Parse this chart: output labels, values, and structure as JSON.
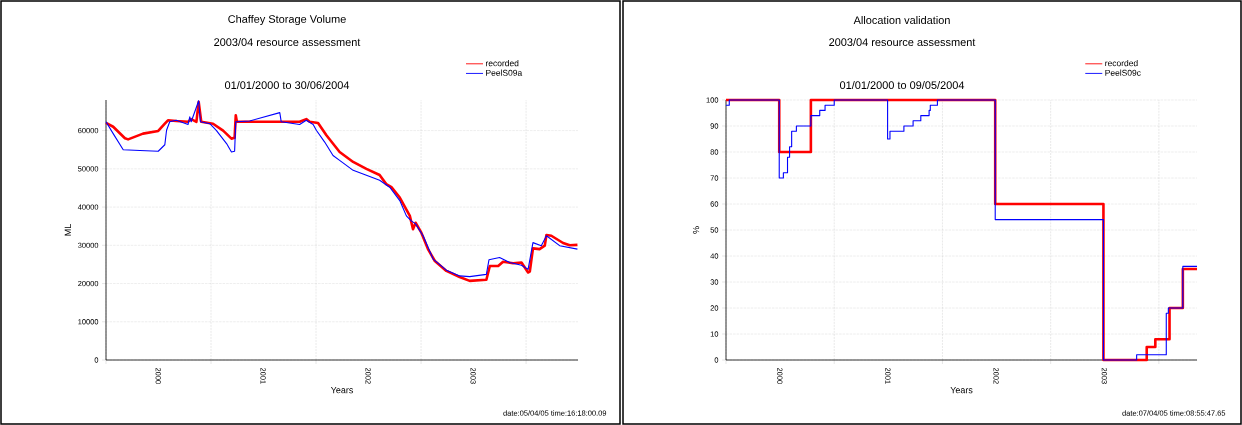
{
  "chart_data": [
    {
      "type": "line",
      "title": "Chaffey Storage Volume",
      "subtitle": "2003/04 resource assessment",
      "xlabel": "Years",
      "ylabel": "ML",
      "annotations": [
        "01/01/2000 to 30/06/2004",
        "date:05/04/05 time:16:18:00.09"
      ],
      "xlim": [
        "2000-01-01",
        "2004-06-30"
      ],
      "ylim": [
        0,
        68000
      ],
      "xticks": [
        {
          "value": "2000-01-01",
          "label": null
        },
        {
          "value": "2000-07-01",
          "label": "2000"
        },
        {
          "value": "2001-01-01",
          "label": null
        },
        {
          "value": "2001-07-01",
          "label": "2001"
        },
        {
          "value": "2002-01-01",
          "label": null
        },
        {
          "value": "2002-07-01",
          "label": "2002"
        },
        {
          "value": "2003-01-01",
          "label": null
        },
        {
          "value": "2003-07-01",
          "label": "2003"
        },
        {
          "value": "2004-01-01",
          "label": null
        }
      ],
      "yticks": [
        0,
        10000,
        20000,
        30000,
        40000,
        50000,
        60000
      ],
      "grid": true,
      "legend": "top right",
      "series": [
        {
          "name": "recorded",
          "color": "#ff0000",
          "x": [
            "2000-01-01",
            "2000-01-26",
            "2000-03-07",
            "2000-03-18",
            "2000-05-09",
            "2000-07-01",
            "2000-07-24",
            "2000-08-04",
            "2000-09-02",
            "2000-10-13",
            "2000-10-24",
            "2000-11-11",
            "2000-11-19",
            "2000-11-28",
            "2001-01-08",
            "2001-02-12",
            "2001-03-13",
            "2001-03-24",
            "2001-03-28",
            "2001-04-01",
            "2001-05-15",
            "2001-08-28",
            "2001-11-05",
            "2001-11-28",
            "2001-12-10",
            "2002-01-08",
            "2002-02-06",
            "2002-03-24",
            "2002-05-10",
            "2002-06-25",
            "2002-08-10",
            "2002-09-02",
            "2002-09-20",
            "2002-10-19",
            "2002-11-23",
            "2002-12-04",
            "2002-12-13",
            "2003-01-02",
            "2003-01-25",
            "2003-02-18",
            "2003-03-30",
            "2003-05-15",
            "2003-06-19",
            "2003-08-16",
            "2003-08-28",
            "2003-09-26",
            "2003-10-13",
            "2003-11-17",
            "2003-12-16",
            "2004-01-08",
            "2004-01-14",
            "2004-01-25",
            "2004-02-17",
            "2004-03-06",
            "2004-03-12",
            "2004-03-29",
            "2004-05-09",
            "2004-06-01",
            "2004-06-28"
          ],
          "values": [
            62000,
            61000,
            58000,
            57700,
            59200,
            59900,
            61800,
            62700,
            62500,
            62300,
            63000,
            62300,
            67500,
            62300,
            61800,
            60000,
            57900,
            58100,
            64000,
            62300,
            62300,
            62300,
            62300,
            63000,
            62300,
            62000,
            58800,
            54400,
            51800,
            50000,
            48400,
            46000,
            45200,
            42500,
            37700,
            34200,
            35900,
            33300,
            29000,
            25900,
            23300,
            21700,
            20700,
            21000,
            24600,
            24600,
            25700,
            25300,
            25500,
            22900,
            23100,
            29200,
            29000,
            29900,
            32700,
            32500,
            30600,
            30000,
            30100
          ]
        },
        {
          "name": "PeelS09a",
          "color": "#0000ff",
          "x": [
            "2000-01-01",
            "2000-01-26",
            "2000-03-01",
            "2000-04-28",
            "2000-07-01",
            "2000-07-24",
            "2000-07-30",
            "2000-08-10",
            "2000-09-02",
            "2000-10-13",
            "2000-10-19",
            "2000-10-24",
            "2000-11-19",
            "2000-11-25",
            "2000-12-28",
            "2001-01-20",
            "2001-02-24",
            "2001-03-13",
            "2001-03-24",
            "2001-03-28",
            "2001-05-15",
            "2001-08-28",
            "2001-09-02",
            "2001-11-05",
            "2001-11-28",
            "2001-12-22",
            "2002-01-02",
            "2002-01-31",
            "2002-03-01",
            "2002-03-24",
            "2002-05-10",
            "2002-06-25",
            "2002-08-10",
            "2002-09-14",
            "2002-10-19",
            "2002-11-11",
            "2002-11-28",
            "2002-12-13",
            "2003-01-08",
            "2003-02-12",
            "2003-03-30",
            "2003-05-15",
            "2003-06-19",
            "2003-08-16",
            "2003-08-25",
            "2003-10-01",
            "2003-11-05",
            "2003-12-16",
            "2004-01-08",
            "2004-01-25",
            "2004-02-23",
            "2004-03-12",
            "2004-04-27",
            "2004-06-28"
          ],
          "values": [
            62300,
            59200,
            55000,
            54800,
            54600,
            56300,
            60100,
            62300,
            62700,
            61600,
            63600,
            62300,
            67800,
            62300,
            61800,
            60000,
            56600,
            54400,
            54600,
            62300,
            62500,
            64700,
            62300,
            61600,
            62700,
            61600,
            60100,
            57000,
            53500,
            52200,
            49600,
            48300,
            47000,
            45200,
            41700,
            37700,
            36400,
            35600,
            32500,
            26400,
            23500,
            22000,
            21800,
            22400,
            26200,
            26800,
            25500,
            24800,
            23700,
            30700,
            29900,
            32500,
            29900,
            29000
          ]
        }
      ]
    },
    {
      "type": "step",
      "title": "Allocation validation",
      "subtitle": "2003/04 resource assessment",
      "xlabel": "Years",
      "ylabel": "%",
      "annotations": [
        "01/01/2000 to 09/05/2004",
        "date:07/04/05 time:08:55:47.65"
      ],
      "xlim": [
        "2000-01-01",
        "2004-05-09"
      ],
      "ylim": [
        0,
        100
      ],
      "xticks": [
        {
          "value": "2000-01-01",
          "label": null
        },
        {
          "value": "2000-07-01",
          "label": "2000"
        },
        {
          "value": "2001-01-01",
          "label": null
        },
        {
          "value": "2001-07-01",
          "label": "2001"
        },
        {
          "value": "2002-01-01",
          "label": null
        },
        {
          "value": "2002-07-01",
          "label": "2002"
        },
        {
          "value": "2003-01-01",
          "label": null
        },
        {
          "value": "2003-07-01",
          "label": "2003"
        },
        {
          "value": "2004-01-01",
          "label": null
        }
      ],
      "yticks": [
        0,
        10,
        20,
        30,
        40,
        50,
        60,
        70,
        80,
        90,
        100
      ],
      "grid": true,
      "legend": "top right",
      "series": [
        {
          "name": "recorded",
          "color": "#ff0000",
          "x": [
            "2000-01-01",
            "2000-06-29",
            "2000-10-14",
            "2002-06-28",
            "2003-06-28",
            "2003-11-21",
            "2003-12-20",
            "2004-02-06",
            "2004-03-22",
            "2004-05-09"
          ],
          "values": [
            100,
            80,
            100,
            60,
            0,
            5,
            8,
            20,
            35,
            35
          ]
        },
        {
          "name": "PeelS09c",
          "color": "#0000ff",
          "x": [
            "2000-01-01",
            "2000-01-12",
            "2000-06-29",
            "2000-07-13",
            "2000-07-27",
            "2000-08-03",
            "2000-08-10",
            "2000-08-26",
            "2000-10-14",
            "2000-11-13",
            "2000-12-01",
            "2001-01-01",
            "2001-06-30",
            "2001-07-08",
            "2001-08-24",
            "2001-09-24",
            "2001-10-20",
            "2001-11-17",
            "2001-11-21",
            "2001-12-15",
            "2002-06-28",
            "2003-06-28",
            "2003-10-18",
            "2004-01-26",
            "2004-02-02",
            "2004-03-22",
            "2004-05-09"
          ],
          "values": [
            98,
            100,
            70,
            72,
            78,
            82,
            88,
            90,
            94,
            96,
            98,
            100,
            85,
            88,
            90,
            92,
            94,
            96,
            98,
            100,
            54,
            0,
            2,
            18,
            20,
            36,
            36
          ]
        }
      ]
    }
  ]
}
